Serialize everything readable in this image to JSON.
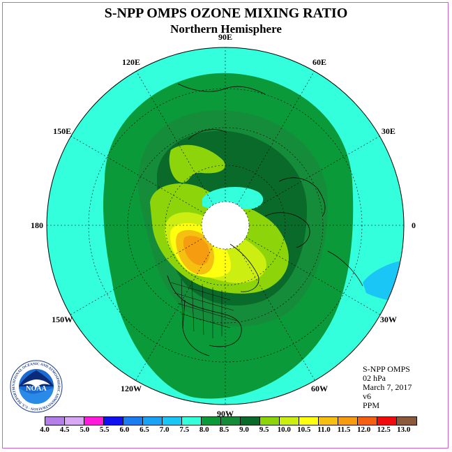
{
  "header": {
    "title": "S-NPP OMPS OZONE MIXING RATIO",
    "subtitle": "Northern Hemisphere"
  },
  "map": {
    "longitude_labels": [
      "90E",
      "60E",
      "30E",
      "0",
      "30W",
      "60W",
      "90W",
      "120W",
      "150W",
      "180",
      "150E",
      "120E"
    ],
    "background_color": "#33ffdd",
    "no_data_color": "#ffffff"
  },
  "info": {
    "lines": [
      "S-NPP OMPS",
      "02 hPa",
      "March 7, 2017",
      "v6",
      "PPM"
    ]
  },
  "colorbar": {
    "labels": [
      "4.0",
      "4.5",
      "5.0",
      "5.5",
      "6.0",
      "6.5",
      "7.0",
      "7.5",
      "8.0",
      "8.5",
      "9.0",
      "9.5",
      "10.0",
      "10.5",
      "11.0",
      "11.5",
      "12.0",
      "12.5",
      "13.0"
    ],
    "colors": [
      "#b57ee8",
      "#d8a8f5",
      "#ff1adc",
      "#1010f0",
      "#1a7ef0",
      "#1aa2f5",
      "#1ac6f5",
      "#33ffdd",
      "#0a9a3a",
      "#158c3a",
      "#0a6a2a",
      "#8ed40a",
      "#ccee10",
      "#ffff10",
      "#f5c010",
      "#f59c10",
      "#f56010",
      "#f00c0c",
      "#8a5a3a"
    ]
  },
  "logo": {
    "text": "NOAA",
    "ring_text": "NATIONAL OCEANIC AND ATMOSPHERIC ADMINISTRATION · U.S. DEPARTMENT OF COMMERCE"
  }
}
